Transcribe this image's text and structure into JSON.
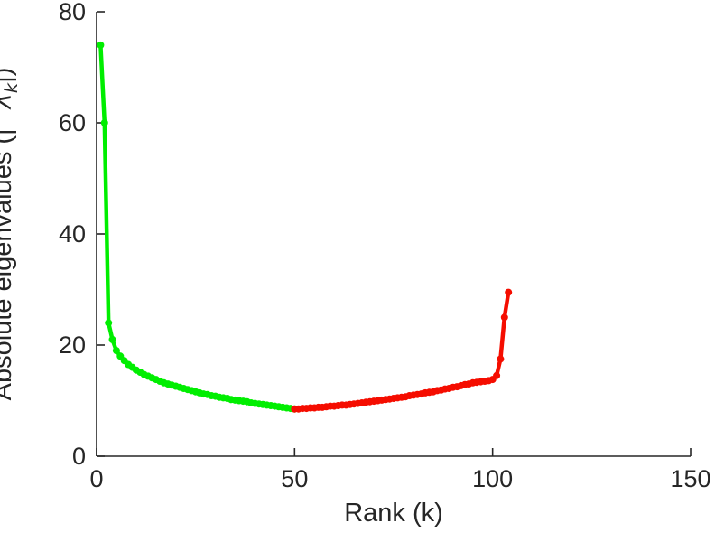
{
  "figure": {
    "background": "#ffffff",
    "axis_color": "#262626"
  },
  "chart_data": {
    "type": "line",
    "title": "",
    "xlabel": "Rank (k)",
    "ylabel": "Absolute eigenvalues (|   λ_k|)",
    "ylabel_parts": {
      "prefix": "Absolute eigenvalues (|",
      "lambda": "λ",
      "subscript": "k",
      "suffix": "|)"
    },
    "xlim": [
      0,
      150
    ],
    "ylim": [
      0,
      80
    ],
    "xticks": [
      0,
      50,
      100,
      150
    ],
    "yticks": [
      0,
      20,
      40,
      60,
      80
    ],
    "grid": false,
    "legend": null,
    "series": [
      {
        "name": "leading-eigenvalues-green",
        "color": "#00ee00",
        "marker": "dot",
        "x": [
          1,
          2,
          3,
          4,
          5,
          6,
          7,
          8,
          9,
          10,
          11,
          12,
          13,
          14,
          15,
          16,
          17,
          18,
          19,
          20,
          21,
          22,
          23,
          24,
          25,
          26,
          27,
          28,
          29,
          30,
          31,
          32,
          33,
          34,
          35,
          36,
          37,
          38,
          39,
          40,
          41,
          42,
          43,
          44,
          45,
          46,
          47,
          48,
          49,
          50
        ],
        "y": [
          74,
          60,
          24,
          21,
          19,
          18,
          17.2,
          16.5,
          16,
          15.5,
          15.1,
          14.7,
          14.4,
          14.1,
          13.8,
          13.5,
          13.2,
          13.0,
          12.8,
          12.6,
          12.4,
          12.2,
          12.0,
          11.8,
          11.6,
          11.4,
          11.2,
          11.1,
          10.9,
          10.8,
          10.6,
          10.5,
          10.4,
          10.2,
          10.1,
          10.0,
          9.9,
          9.8,
          9.6,
          9.5,
          9.4,
          9.3,
          9.2,
          9.1,
          9.0,
          8.9,
          8.8,
          8.7,
          8.6,
          8.5
        ]
      },
      {
        "name": "trailing-eigenvalues-red",
        "color": "#f50d00",
        "marker": "dot",
        "x": [
          50,
          51,
          52,
          53,
          54,
          55,
          56,
          57,
          58,
          59,
          60,
          61,
          62,
          63,
          64,
          65,
          66,
          67,
          68,
          69,
          70,
          71,
          72,
          73,
          74,
          75,
          76,
          77,
          78,
          79,
          80,
          81,
          82,
          83,
          84,
          85,
          86,
          87,
          88,
          89,
          90,
          91,
          92,
          93,
          94,
          95,
          96,
          97,
          98,
          99,
          100,
          101,
          102,
          103,
          104
        ],
        "y": [
          8.5,
          8.5,
          8.6,
          8.6,
          8.7,
          8.7,
          8.8,
          8.8,
          8.9,
          9.0,
          9.0,
          9.1,
          9.2,
          9.2,
          9.3,
          9.4,
          9.5,
          9.6,
          9.7,
          9.8,
          9.9,
          10.0,
          10.1,
          10.2,
          10.3,
          10.4,
          10.5,
          10.6,
          10.7,
          10.9,
          11.0,
          11.1,
          11.2,
          11.4,
          11.5,
          11.6,
          11.8,
          11.9,
          12.1,
          12.2,
          12.4,
          12.5,
          12.7,
          12.9,
          13.0,
          13.2,
          13.3,
          13.4,
          13.5,
          13.6,
          13.8,
          14.5,
          17.5,
          25.0,
          29.5
        ]
      }
    ]
  }
}
